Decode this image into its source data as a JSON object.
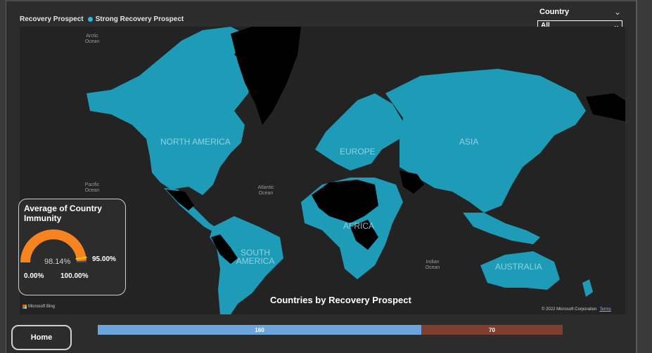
{
  "legend": {
    "title": "Recovery Prospect",
    "items": [
      {
        "label": "Strong Recovery Prospect",
        "color": "#29b6e8"
      }
    ]
  },
  "slicer": {
    "title": "Country",
    "selected": "All"
  },
  "map": {
    "title": "Countries by Recovery Prospect",
    "continent_labels": {
      "north_america": "NORTH AMERICA",
      "south_america": "SOUTH AMERICA",
      "europe": "EUROPE",
      "africa": "AFRICA",
      "asia": "ASIA",
      "australia": "AUSTRALIA"
    },
    "ocean_labels": {
      "arctic": "Arctic Ocean",
      "pacific": "Pacific Ocean",
      "atlantic": "Atlantic Ocean",
      "indian": "Indian Ocean"
    },
    "attribution": "Microsoft Bing",
    "copyright": "© 2022 Microsoft Corporation",
    "terms": "Terms",
    "colors": {
      "strong": "#1d9bb7",
      "other": "#000000",
      "ocean": "#232323"
    }
  },
  "gauge": {
    "title": "Average of Country Immunity",
    "value_label": "98.14%",
    "value": 98.14,
    "target_label": "95.00%",
    "target": 95.0,
    "min_label": "0.00%",
    "max_label": "100.00%",
    "min": 0,
    "max": 100,
    "fill_color": "#f7841e",
    "target_color": "#f2c811"
  },
  "home_button": {
    "label": "Home"
  },
  "bar": {
    "segments": [
      {
        "label": "160",
        "value": 160,
        "color": "#6aa6dc"
      },
      {
        "label": "70",
        "value": 70,
        "color": "#7f3e2e"
      }
    ]
  }
}
